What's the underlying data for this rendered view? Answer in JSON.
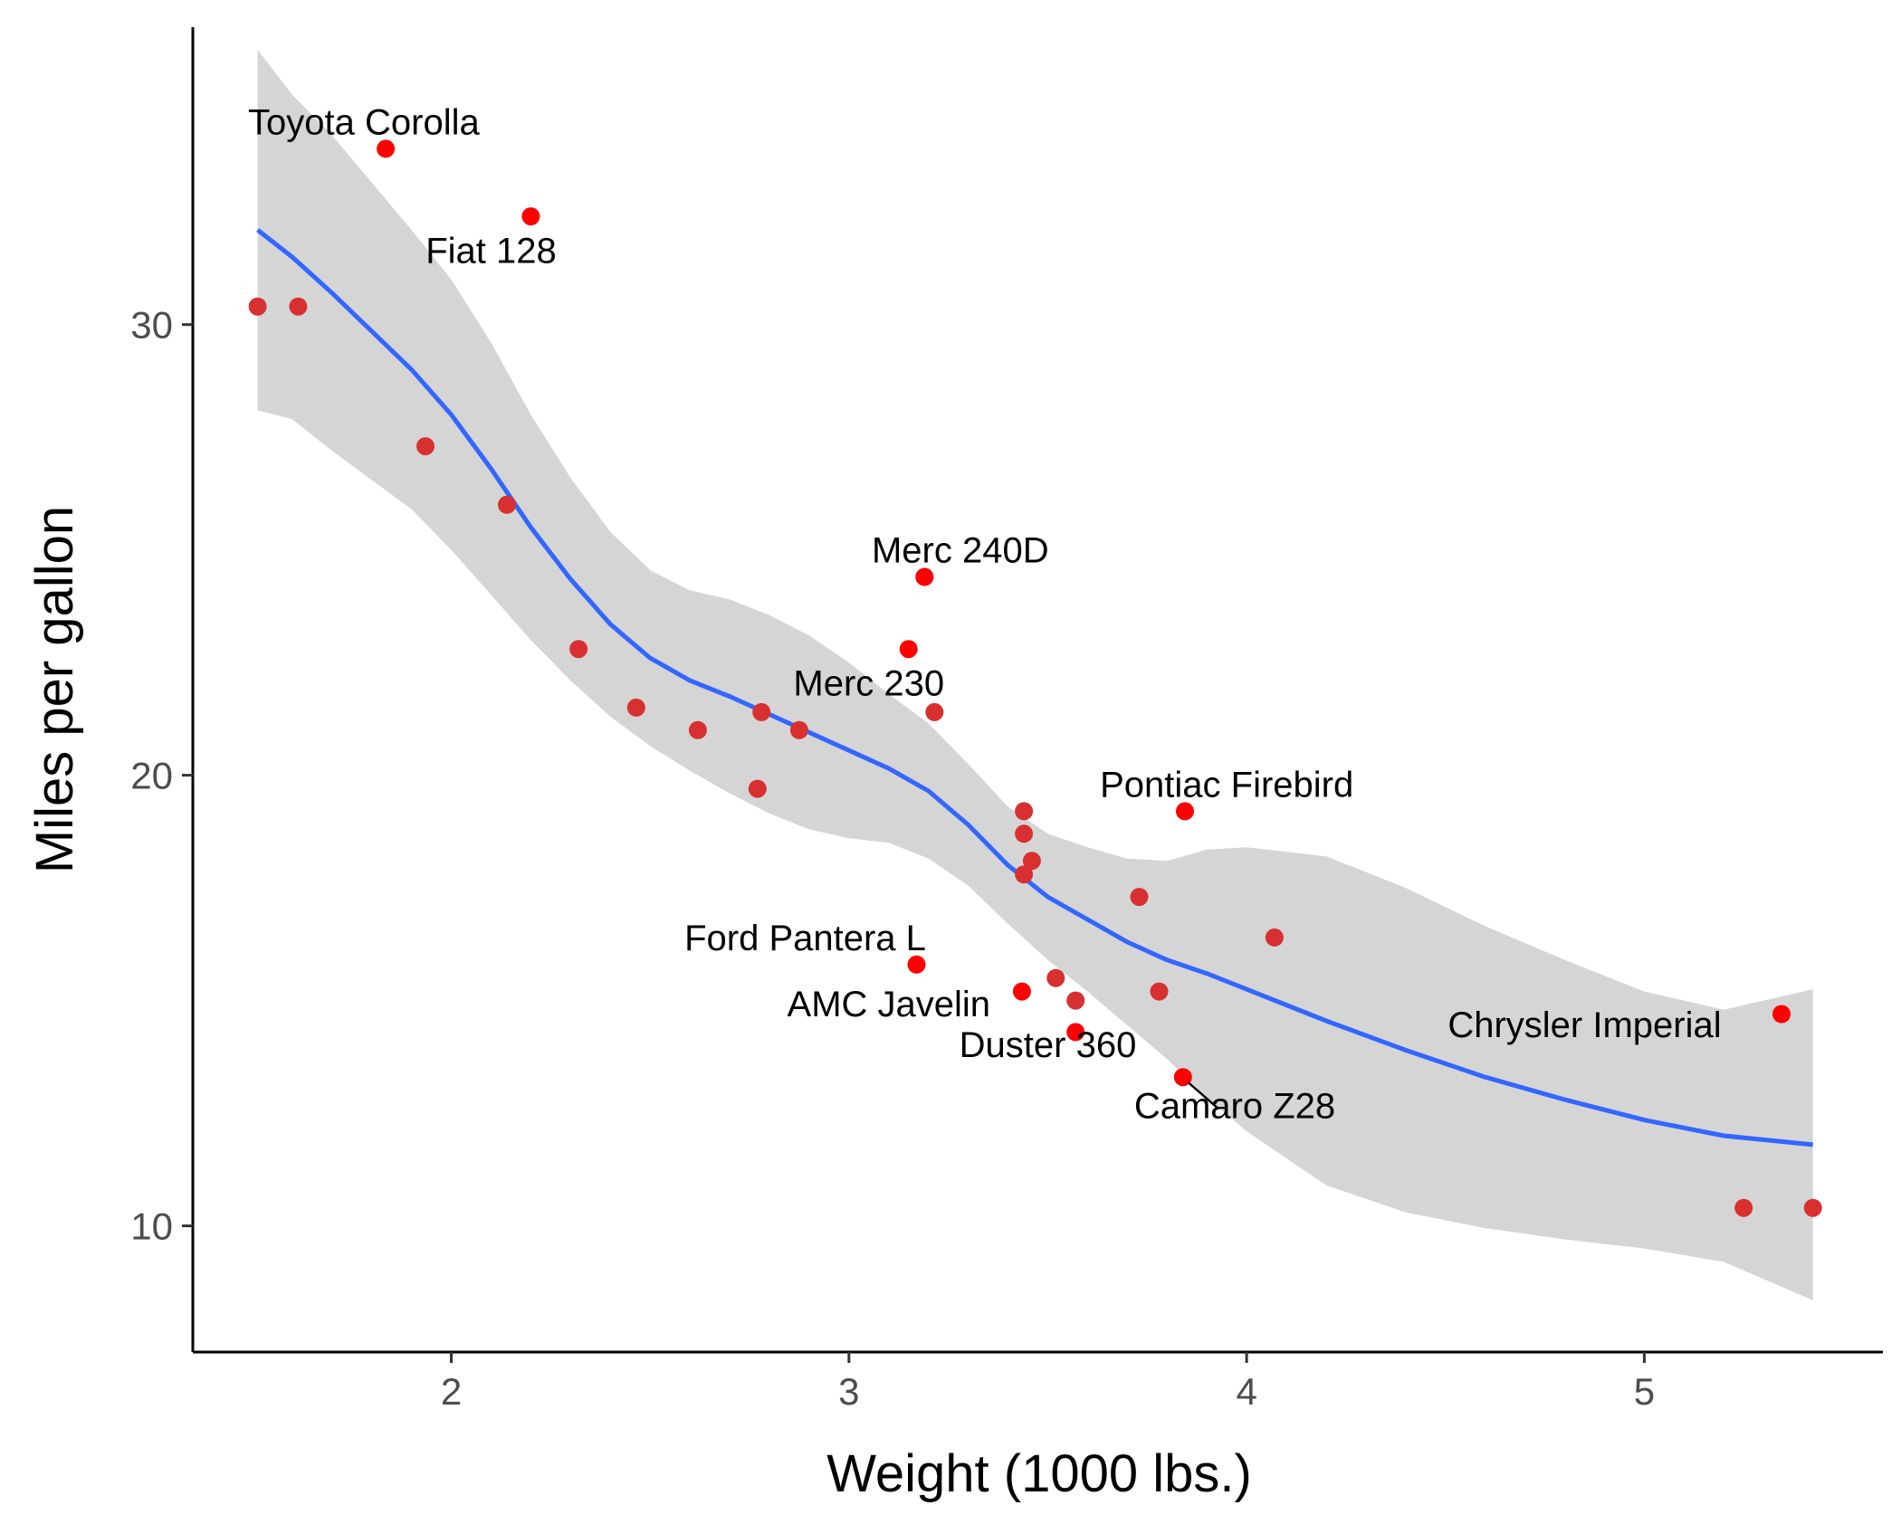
{
  "chart_data": {
    "type": "scatter",
    "title": "",
    "xlabel": "Weight (1000 lbs.)",
    "ylabel": "Miles per gallon",
    "xlim": [
      1.35,
      5.6
    ],
    "ylim": [
      7.2,
      36.6
    ],
    "x_ticks": [
      2,
      3,
      4,
      5
    ],
    "y_ticks": [
      10,
      20,
      30
    ],
    "grid": false,
    "colors": {
      "point_highlight": "#ff0000",
      "point_regular": "#d83030",
      "smooth_line": "#3366ff",
      "confidence_band": "#d5d5d5"
    },
    "points": [
      {
        "x": 1.513,
        "y": 30.4
      },
      {
        "x": 1.615,
        "y": 30.4
      },
      {
        "x": 1.835,
        "y": 33.9
      },
      {
        "x": 1.935,
        "y": 27.3
      },
      {
        "x": 2.14,
        "y": 26.0
      },
      {
        "x": 2.2,
        "y": 32.4
      },
      {
        "x": 2.32,
        "y": 22.8
      },
      {
        "x": 2.465,
        "y": 21.5
      },
      {
        "x": 2.62,
        "y": 21.0
      },
      {
        "x": 2.77,
        "y": 19.7
      },
      {
        "x": 2.78,
        "y": 21.4
      },
      {
        "x": 2.875,
        "y": 21.0
      },
      {
        "x": 3.15,
        "y": 22.8
      },
      {
        "x": 3.17,
        "y": 15.8
      },
      {
        "x": 3.19,
        "y": 24.4
      },
      {
        "x": 3.215,
        "y": 21.4
      },
      {
        "x": 3.435,
        "y": 15.2
      },
      {
        "x": 3.44,
        "y": 19.2
      },
      {
        "x": 3.44,
        "y": 18.7
      },
      {
        "x": 3.44,
        "y": 17.8
      },
      {
        "x": 3.46,
        "y": 18.1
      },
      {
        "x": 3.52,
        "y": 15.5
      },
      {
        "x": 3.57,
        "y": 15.0
      },
      {
        "x": 3.57,
        "y": 14.3
      },
      {
        "x": 3.73,
        "y": 17.3
      },
      {
        "x": 3.78,
        "y": 15.2
      },
      {
        "x": 3.84,
        "y": 13.3
      },
      {
        "x": 3.845,
        "y": 19.2
      },
      {
        "x": 4.07,
        "y": 16.4
      },
      {
        "x": 5.25,
        "y": 10.4
      },
      {
        "x": 5.345,
        "y": 14.7
      },
      {
        "x": 5.424,
        "y": 10.4
      }
    ],
    "labels": [
      {
        "text": "Toyota Corolla",
        "x": 1.835,
        "y": 33.9,
        "lx": 1.78,
        "ly": 34.5
      },
      {
        "text": "Fiat 128",
        "x": 2.2,
        "y": 32.4,
        "lx": 2.1,
        "ly": 31.65
      },
      {
        "text": "Merc 240D",
        "x": 3.19,
        "y": 24.4,
        "lx": 3.28,
        "ly": 25.0
      },
      {
        "text": "Merc 230",
        "x": 3.15,
        "y": 22.8,
        "lx": 3.05,
        "ly": 22.05
      },
      {
        "text": "Pontiac Firebird",
        "x": 3.845,
        "y": 19.2,
        "lx": 3.95,
        "ly": 19.8
      },
      {
        "text": "Ford Pantera L",
        "x": 3.17,
        "y": 15.8,
        "lx": 2.89,
        "ly": 16.4
      },
      {
        "text": "AMC Javelin",
        "x": 3.435,
        "y": 15.2,
        "lx": 3.1,
        "ly": 14.93
      },
      {
        "text": "Duster 360",
        "x": 3.57,
        "y": 14.3,
        "lx": 3.5,
        "ly": 14.03
      },
      {
        "text": "Camaro Z28",
        "x": 3.84,
        "y": 13.3,
        "lx": 3.97,
        "ly": 12.67,
        "leader": true
      },
      {
        "text": "Chrysler Imperial",
        "x": 5.345,
        "y": 14.7,
        "lx": 4.85,
        "ly": 14.47
      }
    ],
    "smooth": {
      "x": [
        1.513,
        1.6,
        1.7,
        1.8,
        1.9,
        2.0,
        2.1,
        2.2,
        2.3,
        2.4,
        2.5,
        2.6,
        2.7,
        2.8,
        2.9,
        3.0,
        3.1,
        3.2,
        3.3,
        3.4,
        3.5,
        3.6,
        3.7,
        3.8,
        3.9,
        4.0,
        4.2,
        4.4,
        4.6,
        4.8,
        5.0,
        5.2,
        5.424
      ],
      "y": [
        32.1,
        31.5,
        30.7,
        29.85,
        29.0,
        28.0,
        26.8,
        25.5,
        24.35,
        23.35,
        22.6,
        22.1,
        21.75,
        21.35,
        20.95,
        20.55,
        20.15,
        19.65,
        18.9,
        18.0,
        17.3,
        16.8,
        16.3,
        15.9,
        15.6,
        15.25,
        14.55,
        13.9,
        13.3,
        12.8,
        12.35,
        12.0,
        11.8
      ],
      "lower": [
        28.1,
        27.9,
        27.2,
        26.55,
        25.9,
        25.0,
        24.0,
        23.0,
        22.1,
        21.3,
        20.65,
        20.1,
        19.6,
        19.15,
        18.8,
        18.6,
        18.5,
        18.15,
        17.55,
        16.7,
        15.9,
        15.2,
        14.45,
        13.7,
        12.85,
        12.1,
        10.9,
        10.3,
        9.95,
        9.7,
        9.5,
        9.2,
        8.35
      ],
      "upper": [
        36.1,
        35.1,
        34.2,
        33.15,
        32.1,
        31.0,
        29.6,
        28.0,
        26.6,
        25.4,
        24.55,
        24.1,
        23.9,
        23.55,
        23.1,
        22.5,
        21.8,
        21.15,
        20.25,
        19.3,
        18.7,
        18.4,
        18.15,
        18.1,
        18.35,
        18.4,
        18.2,
        17.5,
        16.65,
        15.9,
        15.2,
        14.8,
        15.25
      ]
    }
  }
}
